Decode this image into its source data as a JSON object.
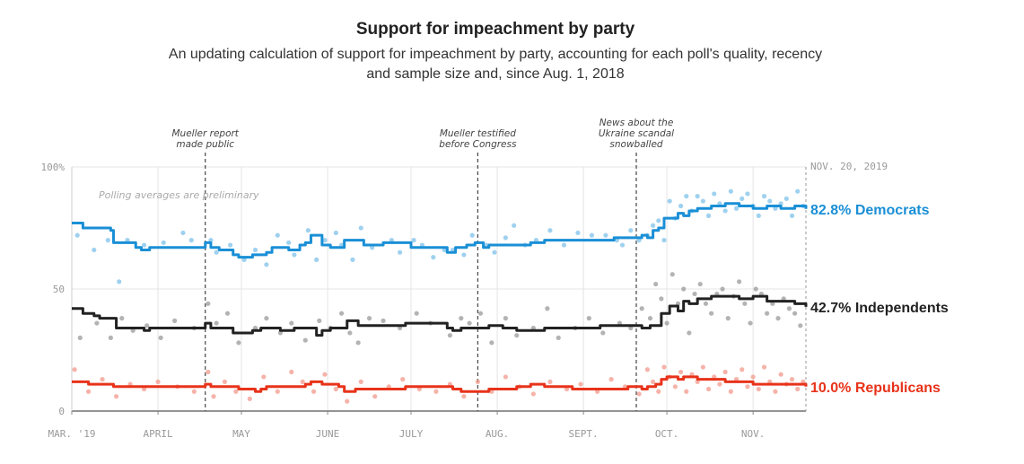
{
  "title": "Support for impeachment by party",
  "subtitle_line1": "An updating calculation of support for impeachment by party, accounting for each poll's quality, recency",
  "subtitle_line2": "and sample size and, since Aug. 1, 2018",
  "note": "Polling averages are preliminary",
  "date_label": "NOV. 20, 2019",
  "chart_data": {
    "type": "line",
    "x_unit": "days since Mar. 1, 2019",
    "xlim": [
      0,
      264
    ],
    "ylim": [
      0,
      100
    ],
    "yticks": [
      0,
      50,
      100
    ],
    "ytick_labels": [
      "0",
      "50",
      "100%"
    ],
    "xticks": [
      {
        "day": 0,
        "label": "MAR. '19"
      },
      {
        "day": 31,
        "label": "APRIL"
      },
      {
        "day": 61,
        "label": "MAY"
      },
      {
        "day": 92,
        "label": "JUNE"
      },
      {
        "day": 122,
        "label": "JULY"
      },
      {
        "day": 153,
        "label": "AUG."
      },
      {
        "day": 184,
        "label": "SEPT."
      },
      {
        "day": 214,
        "label": "OCT."
      },
      {
        "day": 245,
        "label": "NOV."
      }
    ],
    "annotations": [
      {
        "day": 48,
        "lines": [
          "Mueller report",
          "made public"
        ]
      },
      {
        "day": 146,
        "lines": [
          "Mueller testified",
          "before Congress"
        ]
      },
      {
        "day": 203,
        "lines": [
          "News about the",
          "Ukraine scandal",
          "snowballed"
        ]
      }
    ],
    "series": [
      {
        "name": "Democrats",
        "end_label": "82.8% Democrats",
        "color": "#1a8fd6",
        "dot_color": "#7fc2ea",
        "x": [
          0,
          3,
          4,
          12,
          14,
          15,
          23,
          25,
          28,
          30,
          45,
          48,
          50,
          53,
          58,
          60,
          63,
          65,
          70,
          72,
          78,
          82,
          84,
          86,
          90,
          93,
          98,
          100,
          102,
          105,
          112,
          120,
          122,
          133,
          135,
          138,
          140,
          142,
          145,
          148,
          150,
          155,
          160,
          165,
          170,
          180,
          185,
          190,
          195,
          200,
          205,
          207,
          209,
          211,
          213,
          215,
          218,
          220,
          222,
          225,
          230,
          235,
          240,
          245,
          250,
          255,
          260,
          264
        ],
        "y": [
          77,
          77,
          75,
          75,
          74,
          69,
          67,
          66,
          67,
          67,
          67,
          69,
          67,
          66,
          64,
          63,
          63,
          64,
          65,
          67,
          66,
          68,
          69,
          72,
          68,
          67,
          70,
          70,
          70,
          68,
          69,
          69,
          67,
          67,
          65,
          67,
          67,
          68,
          69,
          67,
          68,
          68,
          68,
          69,
          70,
          70,
          70,
          70,
          71,
          71,
          72,
          71,
          74,
          75,
          79,
          79,
          81,
          80,
          82,
          83,
          84,
          85,
          84,
          83,
          84,
          83,
          84,
          82.8
        ],
        "polls_x": [
          2,
          8,
          13,
          17,
          20,
          26,
          33,
          40,
          43,
          50,
          52,
          57,
          62,
          66,
          70,
          74,
          78,
          80,
          85,
          88,
          91,
          95,
          97,
          101,
          104,
          108,
          115,
          118,
          123,
          126,
          130,
          134,
          137,
          141,
          144,
          149,
          152,
          156,
          159,
          163,
          167,
          172,
          177,
          182,
          187,
          192,
          196,
          198,
          201,
          204,
          207,
          209,
          211,
          213,
          215,
          217,
          219,
          221,
          223,
          225,
          227,
          229,
          231,
          233,
          235,
          237,
          239,
          241,
          243,
          245,
          247,
          249,
          251,
          253,
          255,
          257,
          259,
          261,
          263
        ],
        "polls_y": [
          72,
          66,
          70,
          53,
          70,
          68,
          69,
          73,
          70,
          70,
          65,
          68,
          62,
          66,
          60,
          72,
          69,
          64,
          74,
          62,
          70,
          73,
          68,
          62,
          75,
          67,
          70,
          65,
          70,
          68,
          63,
          66,
          66,
          64,
          72,
          68,
          65,
          71,
          76,
          68,
          70,
          74,
          68,
          73,
          72,
          72,
          70,
          68,
          74,
          70,
          72,
          76,
          78,
          70,
          86,
          79,
          84,
          88,
          82,
          88,
          86,
          80,
          89,
          85,
          82,
          90,
          83,
          87,
          89,
          84,
          80,
          88,
          86,
          83,
          85,
          87,
          80,
          90,
          84
        ]
      },
      {
        "name": "Independents",
        "end_label": "42.7% Independents",
        "color": "#222222",
        "dot_color": "#999999",
        "x": [
          0,
          3,
          4,
          8,
          10,
          16,
          20,
          26,
          28,
          30,
          45,
          48,
          50,
          55,
          58,
          62,
          65,
          68,
          75,
          80,
          88,
          90,
          93,
          97,
          99,
          101,
          103,
          110,
          120,
          130,
          135,
          137,
          140,
          150,
          155,
          160,
          170,
          180,
          185,
          190,
          200,
          205,
          208,
          212,
          215,
          218,
          220,
          222,
          225,
          230,
          235,
          240,
          245,
          250,
          255,
          260,
          264
        ],
        "y": [
          42,
          42,
          40,
          39,
          38,
          34,
          34,
          33,
          34,
          34,
          34,
          36,
          34,
          34,
          32,
          32,
          33,
          34,
          33,
          34,
          31,
          33,
          34,
          34,
          37,
          37,
          35,
          35,
          36,
          36,
          34,
          33,
          34,
          35,
          34,
          33,
          34,
          34,
          34,
          35,
          35,
          34,
          35,
          40,
          43,
          41,
          45,
          44,
          46,
          47,
          47,
          46,
          47,
          45,
          45,
          44,
          42.7
        ],
        "polls_x": [
          3,
          9,
          14,
          18,
          22,
          27,
          32,
          37,
          44,
          49,
          52,
          56,
          60,
          66,
          70,
          75,
          79,
          84,
          89,
          93,
          97,
          100,
          103,
          107,
          112,
          118,
          124,
          129,
          136,
          140,
          143,
          147,
          151,
          156,
          160,
          166,
          171,
          175,
          181,
          186,
          191,
          197,
          201,
          205,
          208,
          210,
          212,
          214,
          216,
          218,
          220,
          222,
          224,
          226,
          228,
          230,
          232,
          234,
          236,
          238,
          240,
          242,
          244,
          246,
          248,
          250,
          252,
          254,
          256,
          258,
          260,
          262
        ],
        "polls_y": [
          30,
          36,
          30,
          38,
          33,
          35,
          30,
          37,
          34,
          44,
          36,
          40,
          28,
          34,
          38,
          32,
          36,
          29,
          37,
          34,
          40,
          32,
          28,
          38,
          37,
          34,
          40,
          36,
          31,
          38,
          36,
          40,
          28,
          38,
          31,
          34,
          42,
          30,
          34,
          38,
          32,
          36,
          34,
          42,
          38,
          52,
          46,
          36,
          56,
          44,
          50,
          32,
          48,
          52,
          44,
          40,
          48,
          50,
          38,
          47,
          53,
          44,
          36,
          50,
          48,
          40,
          44,
          38,
          46,
          42,
          40,
          35
        ]
      },
      {
        "name": "Republicans",
        "end_label": "10.0% Republicans",
        "color": "#e8331a",
        "dot_color": "#f29a8c",
        "x": [
          0,
          3,
          6,
          10,
          15,
          18,
          28,
          30,
          45,
          48,
          50,
          58,
          60,
          66,
          68,
          70,
          74,
          78,
          82,
          84,
          86,
          88,
          90,
          92,
          96,
          98,
          100,
          102,
          110,
          120,
          130,
          135,
          137,
          140,
          150,
          155,
          160,
          165,
          170,
          180,
          185,
          190,
          200,
          205,
          207,
          210,
          212,
          214,
          218,
          220,
          225,
          230,
          235,
          240,
          245,
          250,
          255,
          260,
          264
        ],
        "y": [
          12,
          12,
          11,
          11,
          10,
          10,
          10,
          10,
          10,
          11,
          10,
          10,
          9,
          8,
          9,
          10,
          10,
          10,
          10,
          11,
          12,
          12,
          11,
          11,
          10,
          8,
          8,
          9,
          9,
          10,
          10,
          10,
          9,
          8,
          9,
          9,
          10,
          11,
          10,
          9,
          9,
          9,
          10,
          9,
          10,
          11,
          13,
          14,
          13,
          14,
          13,
          13,
          12,
          12,
          11,
          11,
          11,
          11,
          10.0
        ],
        "polls_x": [
          1,
          6,
          11,
          16,
          21,
          26,
          31,
          38,
          44,
          49,
          51,
          55,
          59,
          64,
          69,
          74,
          79,
          83,
          87,
          91,
          95,
          99,
          104,
          109,
          114,
          119,
          125,
          131,
          136,
          141,
          146,
          151,
          156,
          161,
          166,
          172,
          178,
          183,
          189,
          194,
          199,
          204,
          207,
          209,
          211,
          213,
          215,
          217,
          219,
          221,
          223,
          225,
          227,
          229,
          231,
          233,
          235,
          237,
          239,
          241,
          243,
          245,
          247,
          249,
          251,
          253,
          255,
          257,
          259,
          261,
          263
        ],
        "polls_y": [
          17,
          8,
          13,
          6,
          11,
          9,
          12,
          10,
          8,
          16,
          6,
          12,
          8,
          5,
          14,
          8,
          16,
          12,
          8,
          15,
          9,
          4,
          12,
          6,
          10,
          13,
          9,
          8,
          11,
          6,
          12,
          8,
          14,
          10,
          7,
          12,
          9,
          11,
          8,
          13,
          10,
          7,
          17,
          12,
          8,
          18,
          14,
          10,
          16,
          8,
          15,
          12,
          18,
          9,
          14,
          11,
          16,
          8,
          13,
          17,
          10,
          14,
          9,
          18,
          12,
          8,
          15,
          11,
          13,
          9,
          12
        ]
      }
    ]
  }
}
